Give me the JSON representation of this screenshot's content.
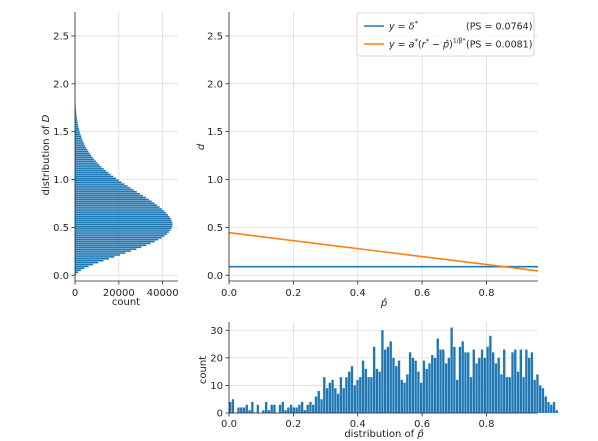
{
  "colors": {
    "blue": "#1f77b4",
    "orange": "#ff7f0e",
    "grid": "#dcdcdc",
    "axis": "#262626"
  },
  "chart_data": [
    {
      "id": "left",
      "type": "bar",
      "orientation": "horizontal",
      "xlabel": "count",
      "ylabel": "distribution of D",
      "xlim": [
        0,
        47000
      ],
      "ylim": [
        -0.06,
        2.75
      ],
      "xticks": [
        0,
        20000,
        40000
      ],
      "xtick_labels": [
        "0",
        "20000",
        "40000"
      ],
      "yticks": [
        0.0,
        0.5,
        1.0,
        1.5,
        2.0,
        2.5
      ],
      "ytick_labels": [
        "0.0",
        "0.5",
        "1.0",
        "1.5",
        "2.0",
        "2.5"
      ],
      "grid": true,
      "bins_min": 0.0,
      "bin_width": 0.02,
      "counts": [
        600,
        1500,
        2700,
        4300,
        6200,
        8300,
        10600,
        13000,
        15500,
        18000,
        20500,
        23000,
        25500,
        28000,
        30300,
        32500,
        34500,
        36400,
        38100,
        39600,
        40900,
        42000,
        42900,
        43600,
        44100,
        44400,
        44500,
        44400,
        44100,
        43700,
        43100,
        42400,
        41600,
        40700,
        39700,
        38600,
        37500,
        36300,
        35000,
        33700,
        32400,
        31000,
        29600,
        28200,
        26800,
        25400,
        24000,
        22600,
        21300,
        20000,
        18700,
        17500,
        16300,
        15200,
        14100,
        13100,
        12100,
        11200,
        10300,
        9500,
        8700,
        8000,
        7300,
        6700,
        6100,
        5600,
        5100,
        4600,
        4200,
        3800,
        3400,
        3100,
        2800,
        2500,
        2200,
        2000,
        1800,
        1600,
        1400,
        1250,
        1100,
        950,
        820,
        700,
        600,
        500,
        420,
        350,
        290,
        240,
        190,
        150,
        120,
        90,
        70,
        50,
        40,
        30,
        20,
        15,
        10,
        8,
        6,
        4,
        3,
        2,
        1,
        1
      ]
    },
    {
      "id": "main",
      "type": "line",
      "xlabel": "p̂",
      "ylabel": "d",
      "xlim": [
        0.0,
        0.96
      ],
      "ylim": [
        -0.06,
        2.75
      ],
      "xticks": [
        0.0,
        0.2,
        0.4,
        0.6,
        0.8
      ],
      "xtick_labels": [
        "0.0",
        "0.2",
        "0.4",
        "0.6",
        "0.8"
      ],
      "yticks": [
        0.0,
        0.5,
        1.0,
        1.5,
        2.0,
        2.5
      ],
      "ytick_labels": [
        "0.0",
        "0.5",
        "1.0",
        "1.5",
        "2.0",
        "2.5"
      ],
      "grid": true,
      "legend_position": "top-right",
      "series": [
        {
          "name": "y = δ*",
          "ps": "(PS = 0.0764)",
          "color": "#1f77b4",
          "x": [
            0.0,
            0.96
          ],
          "y": [
            0.09,
            0.09
          ]
        },
        {
          "name": "y = a*(r* − p̂)^(1/β*)",
          "ps": "(PS = 0.0081)",
          "color": "#ff7f0e",
          "x": [
            0.0,
            0.96
          ],
          "y": [
            0.445,
            0.045
          ]
        }
      ]
    },
    {
      "id": "bottom",
      "type": "bar",
      "xlabel": "distribution of p̂",
      "ylabel": "count",
      "xlim": [
        0.0,
        0.96
      ],
      "ylim": [
        0,
        33
      ],
      "xticks": [
        0.0,
        0.2,
        0.4,
        0.6,
        0.8
      ],
      "xtick_labels": [
        "0.0",
        "0.2",
        "0.4",
        "0.6",
        "0.8"
      ],
      "yticks": [
        0,
        10,
        20,
        30
      ],
      "ytick_labels": [
        "0",
        "10",
        "20",
        "30"
      ],
      "grid": true,
      "bins_min": 0.0,
      "bin_width": 0.0086,
      "counts": [
        4,
        5,
        0,
        2,
        2,
        2,
        3,
        1,
        4,
        0,
        3,
        0,
        1,
        4,
        1,
        3,
        3,
        0,
        3,
        4,
        1,
        2,
        3,
        2,
        2,
        3,
        4,
        1,
        3,
        4,
        3,
        6,
        8,
        5,
        13,
        9,
        11,
        12,
        9,
        7,
        13,
        9,
        13,
        15,
        17,
        10,
        12,
        13,
        19,
        16,
        13,
        13,
        24,
        16,
        15,
        30,
        23,
        24,
        26,
        20,
        17,
        19,
        12,
        11,
        14,
        22,
        20,
        19,
        15,
        11,
        19,
        16,
        18,
        21,
        20,
        27,
        23,
        23,
        18,
        20,
        31,
        24,
        12,
        24,
        26,
        22,
        22,
        13,
        23,
        18,
        20,
        23,
        20,
        24,
        28,
        22,
        18,
        20,
        14,
        23,
        13,
        13,
        22,
        23,
        15,
        23,
        13,
        23,
        20,
        22,
        12,
        14,
        10,
        9,
        6,
        4,
        3,
        4,
        1
      ]
    }
  ],
  "text": {
    "left_ylabel_prefix": "distribution of ",
    "left_ylabel_var": "D",
    "main_ylabel": "d",
    "main_xlabel": "p̂",
    "bottom_ylabel": "count",
    "bottom_xlabel": "distribution of p̂",
    "left_xlabel": "count"
  }
}
